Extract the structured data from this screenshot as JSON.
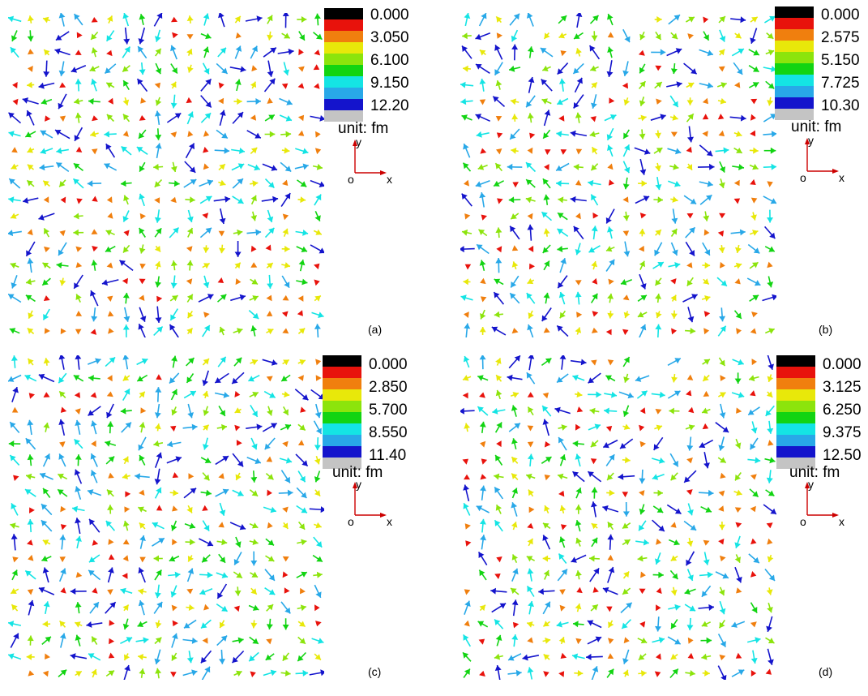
{
  "palette": [
    "#000000",
    "#e8120c",
    "#f07f0e",
    "#e8e80a",
    "#8ce40c",
    "#12d412",
    "#14e4e4",
    "#28a8e8",
    "#1414cc",
    "#c4c4c4"
  ],
  "axis_color": "#cc0000",
  "panels": [
    {
      "id": "a",
      "label": "(a)",
      "ticks": [
        "0.000",
        "3.050",
        "6.100",
        "9.150",
        "12.20"
      ],
      "unit": "unit: fm",
      "axis": {
        "y": "y",
        "o": "o",
        "x": "x"
      }
    },
    {
      "id": "b",
      "label": "(b)",
      "ticks": [
        "0.000",
        "2.575",
        "5.150",
        "7.725",
        "10.30"
      ],
      "unit": "unit: fm",
      "axis": {
        "y": "y",
        "o": "o",
        "x": "x"
      }
    },
    {
      "id": "c",
      "label": "(c)",
      "ticks": [
        "0.000",
        "2.850",
        "5.700",
        "8.550",
        "11.40"
      ],
      "unit": "unit: fm",
      "axis": {
        "y": "y",
        "o": "o",
        "x": "x"
      }
    },
    {
      "id": "d",
      "label": "(d)",
      "ticks": [
        "0.000",
        "3.125",
        "6.250",
        "9.375",
        "12.50"
      ],
      "unit": "unit: fm",
      "axis": {
        "y": "y",
        "o": "o",
        "x": "x"
      }
    }
  ]
}
